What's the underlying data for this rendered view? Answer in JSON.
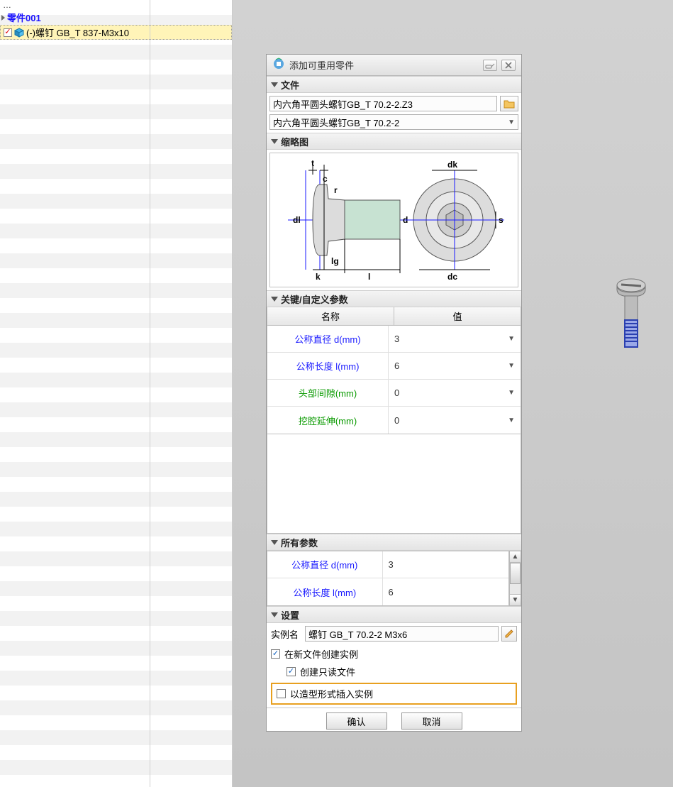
{
  "tree": {
    "part_label": "零件001",
    "item_label": "(-)螺钉 GB_T 837-M3x10"
  },
  "dialog": {
    "title": "添加可重用零件",
    "sections": {
      "file": "文件",
      "thumb": "缩略图",
      "key_params": "关键/自定义参数",
      "all_params": "所有参数",
      "settings": "设置"
    },
    "file": {
      "path": "内六角平圆头螺钉GB_T 70.2-2.Z3",
      "combo": "内六角平圆头螺钉GB_T 70.2-2"
    },
    "table_headers": {
      "name": "名称",
      "value": "值"
    },
    "key_params": [
      {
        "name": "公称直径 d(mm)",
        "value": "3",
        "cls": "blueL",
        "dd": true
      },
      {
        "name": "公称长度 l(mm)",
        "value": "6",
        "cls": "blueL",
        "dd": true
      },
      {
        "name": "头部间隙(mm)",
        "value": "0",
        "cls": "greenL",
        "dd": true
      },
      {
        "name": "挖腔延伸(mm)",
        "value": "0",
        "cls": "greenL",
        "dd": true
      }
    ],
    "all_params": [
      {
        "name": "公称直径 d(mm)",
        "value": "3",
        "cls": "blueL"
      },
      {
        "name": "公称长度 l(mm)",
        "value": "6",
        "cls": "blueL"
      }
    ],
    "settings": {
      "instance_label": "实例名",
      "instance_value": "螺钉 GB_T 70.2-2 M3x6",
      "chk_new_file": "在新文件创建实例",
      "chk_readonly": "创建只读文件",
      "chk_as_shape": "以造型形式插入实例"
    },
    "buttons": {
      "ok": "确认",
      "cancel": "取消"
    }
  },
  "thumb_labels": {
    "t": "t",
    "c": "c",
    "r": "r",
    "dl": "dl",
    "k": "k",
    "lg": "lg",
    "l": "l",
    "d": "d",
    "dk": "dk",
    "dc": "dc",
    "s": "s"
  }
}
